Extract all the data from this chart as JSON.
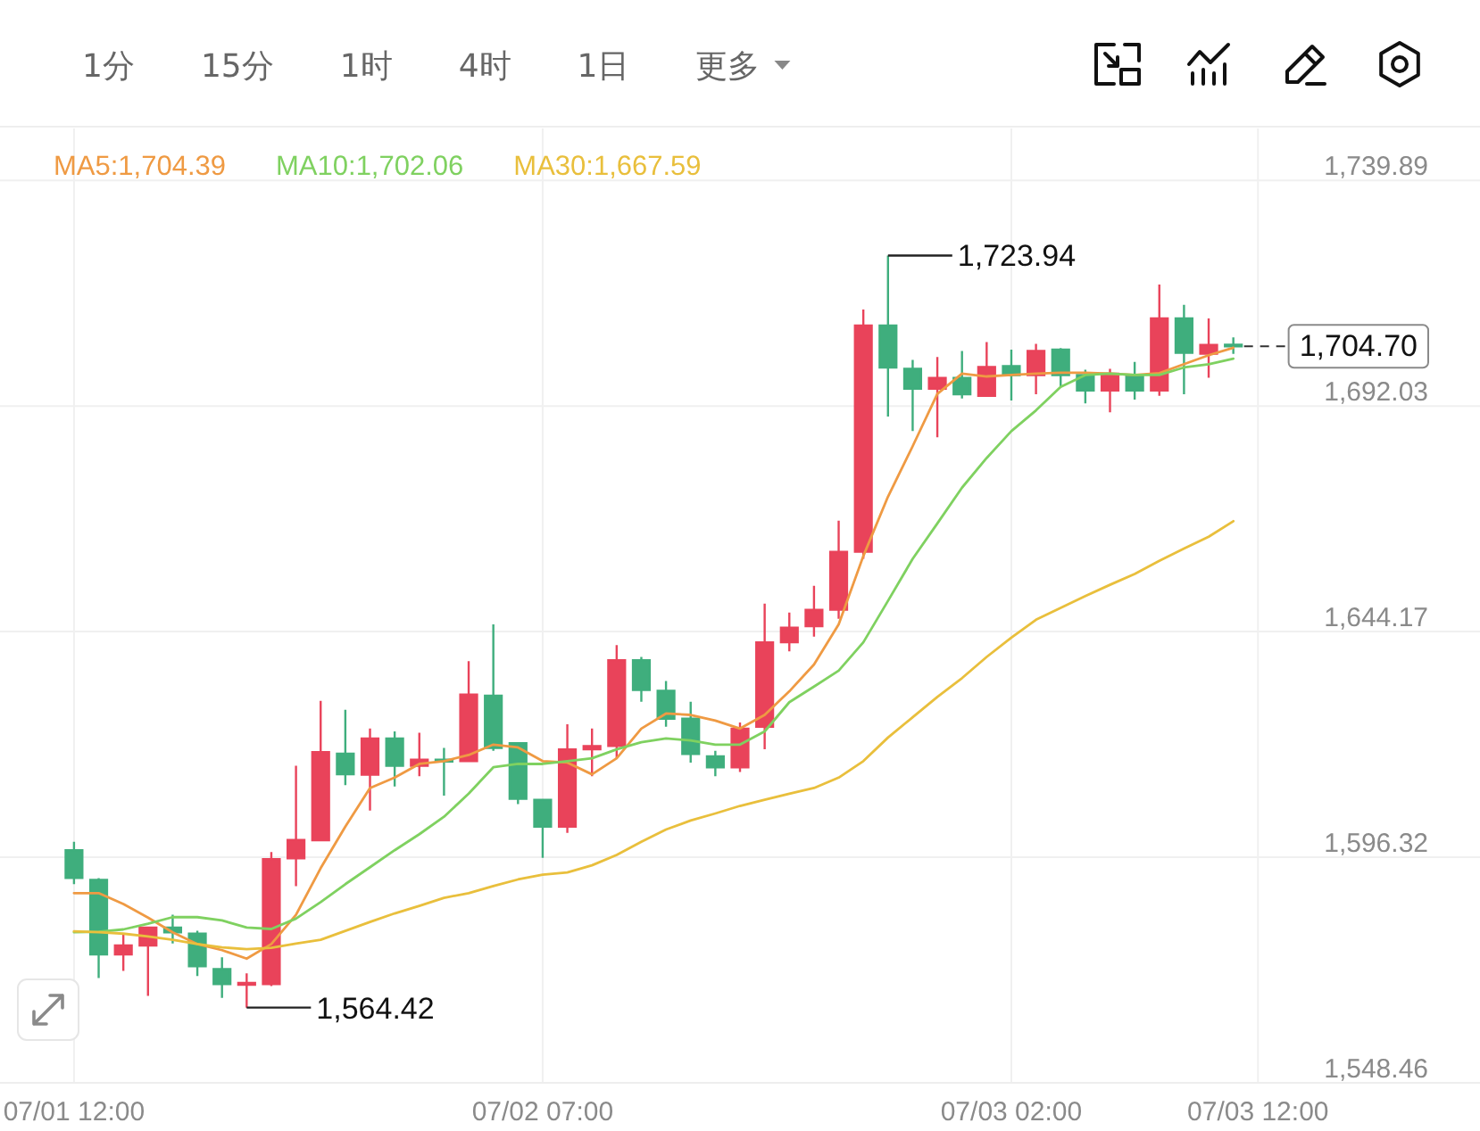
{
  "chart_data": {
    "type": "candlestick",
    "x": [
      "--07-01T12:00",
      "--07-01T13:00",
      "--07-01T14:00",
      "--07-01T15:00",
      "--07-01T16:00",
      "--07-01T17:00",
      "--07-01T18:00",
      "--07-01T19:00",
      "--07-01T20:00",
      "--07-01T21:00",
      "--07-01T22:00",
      "--07-01T23:00",
      "--07-02T00:00",
      "--07-02T01:00",
      "--07-02T02:00",
      "--07-02T03:00",
      "--07-02T04:00",
      "--07-02T05:00",
      "--07-02T06:00",
      "--07-02T07:00",
      "--07-02T08:00",
      "--07-02T09:00",
      "--07-02T10:00",
      "--07-02T11:00",
      "--07-02T12:00",
      "--07-02T13:00",
      "--07-02T14:00",
      "--07-02T15:00",
      "--07-02T16:00",
      "--07-02T17:00",
      "--07-02T18:00",
      "--07-02T19:00",
      "--07-02T20:00",
      "--07-02T21:00",
      "--07-02T22:00",
      "--07-02T23:00",
      "--07-03T00:00",
      "--07-03T01:00",
      "--07-03T02:00",
      "--07-03T03:00",
      "--07-03T04:00",
      "--07-03T05:00",
      "--07-03T06:00",
      "--07-03T07:00",
      "--07-03T08:00",
      "--07-03T09:00",
      "--07-03T10:00",
      "--07-03T11:00"
    ],
    "ohlc": [
      [
        1597.8,
        1599.6,
        1590.6,
        1591.9
      ],
      [
        1591.5,
        1591.9,
        1570.7,
        1575.7
      ],
      [
        1575.7,
        1580.1,
        1572.2,
        1577.6
      ],
      [
        1577.6,
        1581.4,
        1566.9,
        1581.4
      ],
      [
        1581.4,
        1584.1,
        1578.0,
        1580.4
      ],
      [
        1580.1,
        1580.7,
        1571.1,
        1573.2
      ],
      [
        1572.6,
        1575.1,
        1566.5,
        1569.4
      ],
      [
        1569.3,
        1571.7,
        1564.42,
        1569.6
      ],
      [
        1569.4,
        1597.4,
        1569.0,
        1595.9
      ],
      [
        1596.1,
        1615.7,
        1590.2,
        1600.0
      ],
      [
        1599.9,
        1629.5,
        1599.9,
        1618.6
      ],
      [
        1618.3,
        1627.6,
        1611.6,
        1613.9
      ],
      [
        1613.8,
        1623.6,
        1606.2,
        1621.5
      ],
      [
        1621.5,
        1623.0,
        1611.3,
        1615.7
      ],
      [
        1615.7,
        1622.7,
        1613.5,
        1617.0
      ],
      [
        1616.9,
        1619.5,
        1609.4,
        1616.7
      ],
      [
        1616.7,
        1637.9,
        1616.7,
        1630.8
      ],
      [
        1630.6,
        1645.7,
        1618.9,
        1619.5
      ],
      [
        1620.5,
        1620.5,
        1607.6,
        1608.7
      ],
      [
        1608.5,
        1608.5,
        1596.2,
        1602.8
      ],
      [
        1602.8,
        1624.5,
        1601.5,
        1619.2
      ],
      [
        1619.2,
        1623.6,
        1613.5,
        1619.9
      ],
      [
        1619.9,
        1641.3,
        1617.3,
        1638.1
      ],
      [
        1638.1,
        1638.8,
        1629.3,
        1631.8
      ],
      [
        1631.6,
        1633.7,
        1624.0,
        1625.7
      ],
      [
        1625.7,
        1629.3,
        1616.4,
        1618.2
      ],
      [
        1617.7,
        1618.9,
        1613.5,
        1615.4
      ],
      [
        1615.4,
        1624.9,
        1614.4,
        1623.6
      ],
      [
        1624.0,
        1650.1,
        1619.2,
        1641.9
      ],
      [
        1641.9,
        1648.2,
        1640.0,
        1645.0
      ],
      [
        1645.3,
        1653.9,
        1643.1,
        1648.8
      ],
      [
        1648.8,
        1667.7,
        1646.9,
        1661.1
      ],
      [
        1661.1,
        1712.5,
        1659.6,
        1709.1
      ],
      [
        1709.1,
        1723.94,
        1689.8,
        1700.2
      ],
      [
        1699.9,
        1701.8,
        1686.7,
        1695.7
      ],
      [
        1695.7,
        1702.4,
        1685.4,
        1698.0
      ],
      [
        1698.0,
        1703.7,
        1693.6,
        1694.5
      ],
      [
        1694.2,
        1705.6,
        1694.2,
        1700.3
      ],
      [
        1700.5,
        1704.0,
        1693.2,
        1698.6
      ],
      [
        1698.6,
        1705.2,
        1694.5,
        1703.7
      ],
      [
        1704.0,
        1704.3,
        1696.1,
        1698.6
      ],
      [
        1698.6,
        1699.7,
        1692.6,
        1695.3
      ],
      [
        1695.3,
        1699.9,
        1690.7,
        1698.9
      ],
      [
        1698.6,
        1701.4,
        1693.4,
        1695.3
      ],
      [
        1695.3,
        1717.8,
        1694.2,
        1710.6
      ],
      [
        1710.6,
        1713.5,
        1694.5,
        1703.3
      ],
      [
        1703.1,
        1710.6,
        1698.0,
        1705.0
      ],
      [
        1705.0,
        1706.6,
        1703.1,
        1704.7
      ]
    ],
    "colors": [
      "#3fae7d",
      "#3fae7d",
      "#e9435a",
      "#e9435a",
      "#3fae7d",
      "#3fae7d",
      "#3fae7d",
      "#e9435a",
      "#e9435a",
      "#e9435a",
      "#e9435a",
      "#3fae7d",
      "#e9435a",
      "#3fae7d",
      "#e9435a",
      "#3fae7d",
      "#e9435a",
      "#3fae7d",
      "#3fae7d",
      "#3fae7d",
      "#e9435a",
      "#e9435a",
      "#e9435a",
      "#3fae7d",
      "#3fae7d",
      "#3fae7d",
      "#3fae7d",
      "#e9435a",
      "#e9435a",
      "#e9435a",
      "#e9435a",
      "#e9435a",
      "#e9435a",
      "#3fae7d",
      "#3fae7d",
      "#e9435a",
      "#3fae7d",
      "#e9435a",
      "#3fae7d",
      "#e9435a",
      "#3fae7d",
      "#3fae7d",
      "#e9435a",
      "#3fae7d",
      "#e9435a",
      "#3fae7d",
      "#e9435a",
      "#3fae7d"
    ],
    "series": [
      {
        "name": "MA5:1,704.39",
        "type": "line",
        "color": "#ef9a43",
        "values": [
          1588.7,
          1588.7,
          1586.4,
          1583.5,
          1580.4,
          1577.9,
          1576.6,
          1574.8,
          1577.9,
          1584.1,
          1594.0,
          1602.8,
          1611.0,
          1613.2,
          1616.1,
          1616.7,
          1618.0,
          1620.2,
          1619.6,
          1616.7,
          1616.4,
          1613.9,
          1617.3,
          1623.6,
          1626.8,
          1626.5,
          1625.3,
          1623.6,
          1626.5,
          1631.5,
          1637.2,
          1645.7,
          1660.2,
          1672.8,
          1683.5,
          1694.6,
          1698.9,
          1698.3,
          1698.6,
          1698.9,
          1699.1,
          1699.1,
          1698.9,
          1698.6,
          1699.0,
          1700.9,
          1702.8,
          1704.39
        ]
      },
      {
        "name": "MA10:1,702.06",
        "type": "line",
        "color": "#7fd160",
        "values": [
          1580.4,
          1580.5,
          1581.0,
          1582.2,
          1583.6,
          1583.6,
          1582.9,
          1581.4,
          1581.1,
          1583.3,
          1586.8,
          1590.6,
          1594.2,
          1597.8,
          1601.2,
          1604.9,
          1609.8,
          1615.4,
          1616.1,
          1616.1,
          1616.7,
          1617.3,
          1619.2,
          1620.7,
          1621.5,
          1621.1,
          1620.2,
          1620.2,
          1623.0,
          1629.2,
          1632.5,
          1635.9,
          1641.9,
          1650.7,
          1659.6,
          1667.1,
          1674.7,
          1681.0,
          1686.7,
          1691.1,
          1696.1,
          1698.6,
          1698.9,
          1698.6,
          1698.6,
          1700.2,
          1700.9,
          1702.06
        ]
      },
      {
        "name": "MA30:1,667.59",
        "type": "line",
        "color": "#e9bf3c",
        "values": [
          1580.6,
          1580.4,
          1580.1,
          1579.5,
          1578.8,
          1577.9,
          1577.2,
          1576.8,
          1577.1,
          1578.0,
          1578.8,
          1580.7,
          1582.6,
          1584.4,
          1586.0,
          1587.7,
          1588.7,
          1590.2,
          1591.6,
          1592.6,
          1593.1,
          1594.6,
          1596.8,
          1599.6,
          1602.2,
          1604.1,
          1605.6,
          1607.2,
          1608.5,
          1609.8,
          1611.0,
          1613.2,
          1616.7,
          1621.7,
          1626.0,
          1630.3,
          1634.3,
          1638.8,
          1642.9,
          1646.7,
          1649.2,
          1651.7,
          1654.1,
          1656.4,
          1659.2,
          1661.8,
          1664.3,
          1667.59
        ]
      }
    ],
    "xlim": [
      "--07-01T09:00",
      "--07-03T21:00"
    ],
    "xticks": [
      {
        "value": "--07-01T12:00",
        "label": "07/01 12:00"
      },
      {
        "value": "--07-02T07:00",
        "label": "07/02 07:00"
      },
      {
        "value": "--07-03T02:00",
        "label": "07/03 02:00"
      },
      {
        "value": "--07-03T12:00",
        "label": "07/03 12:00"
      }
    ],
    "ylim": [
      1548.46,
      1750.9
    ],
    "yticks": [
      {
        "value": 1548.46,
        "label": "1,548.46"
      },
      {
        "value": 1596.32,
        "label": "1,596.32"
      },
      {
        "value": 1644.17,
        "label": "1,644.17"
      },
      {
        "value": 1692.03,
        "label": "1,692.03"
      },
      {
        "value": 1739.89,
        "label": "1,739.89"
      }
    ],
    "grid": true,
    "legend": "top left",
    "ref_lines": [
      {
        "axis": "y",
        "value": 1704.7,
        "label": "1,704.70",
        "line_style": "dashed",
        "color": "#333333"
      }
    ],
    "annotations": [
      "1分",
      "15分",
      "1时",
      "4时",
      "1日",
      "更多",
      {
        "text": "1,723.94",
        "x": "--07-02T21:00",
        "y": 1723.94
      },
      {
        "text": "1,564.42",
        "x": "--07-01T19:00",
        "y": 1564.42
      }
    ]
  }
}
